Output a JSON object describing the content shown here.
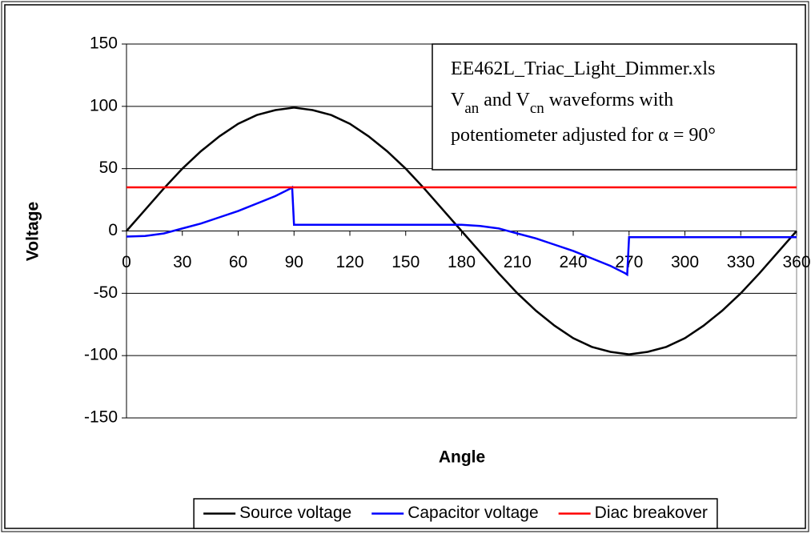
{
  "chart_data": {
    "type": "line",
    "xlabel": "Angle",
    "ylabel": "Voltage",
    "xlim": [
      0,
      360
    ],
    "ylim": [
      -150,
      150
    ],
    "xticks": [
      0,
      30,
      60,
      90,
      120,
      150,
      180,
      210,
      240,
      270,
      300,
      330,
      360
    ],
    "yticks": [
      -150,
      -100,
      -50,
      0,
      50,
      100,
      150
    ],
    "grid": true,
    "legend": "bottom",
    "annotation": [
      [
        "EE462L_Triac_Light_Dimmer.xls"
      ],
      [
        "V",
        {
          "sub": "an"
        },
        " and V",
        {
          "sub": "cn"
        },
        " waveforms with"
      ],
      [
        "potentiometer adjusted for α = 90°"
      ]
    ],
    "series": [
      {
        "name": "Source voltage",
        "color": "#000000",
        "x": [
          0,
          10,
          20,
          30,
          40,
          50,
          60,
          70,
          80,
          90,
          100,
          110,
          120,
          130,
          140,
          150,
          160,
          170,
          180,
          190,
          200,
          210,
          220,
          230,
          240,
          250,
          260,
          270,
          280,
          290,
          300,
          310,
          320,
          330,
          340,
          350,
          360
        ],
        "values": [
          0,
          17,
          34,
          50,
          64,
          76,
          86,
          93,
          97,
          99,
          97,
          93,
          86,
          76,
          64,
          50,
          34,
          17,
          0,
          -17,
          -34,
          -50,
          -64,
          -76,
          -86,
          -93,
          -97,
          -99,
          -97,
          -93,
          -86,
          -76,
          -64,
          -50,
          -34,
          -17,
          0
        ]
      },
      {
        "name": "Capacitor voltage",
        "color": "#0000ff",
        "x": [
          0,
          10,
          20,
          30,
          40,
          50,
          60,
          70,
          80,
          88,
          89,
          90,
          180,
          190,
          200,
          210,
          220,
          230,
          240,
          250,
          260,
          268,
          269,
          270,
          360
        ],
        "values": [
          -4.5,
          -4,
          -2,
          2,
          6,
          11,
          16,
          22,
          28,
          34,
          35,
          5,
          5,
          4,
          2,
          -2,
          -6,
          -11,
          -16,
          -22,
          -28,
          -34,
          -35,
          -5,
          -5
        ]
      },
      {
        "name": "Diac breakover",
        "color": "#ff0000",
        "x": [
          0,
          360
        ],
        "values": [
          35,
          35
        ]
      }
    ]
  }
}
